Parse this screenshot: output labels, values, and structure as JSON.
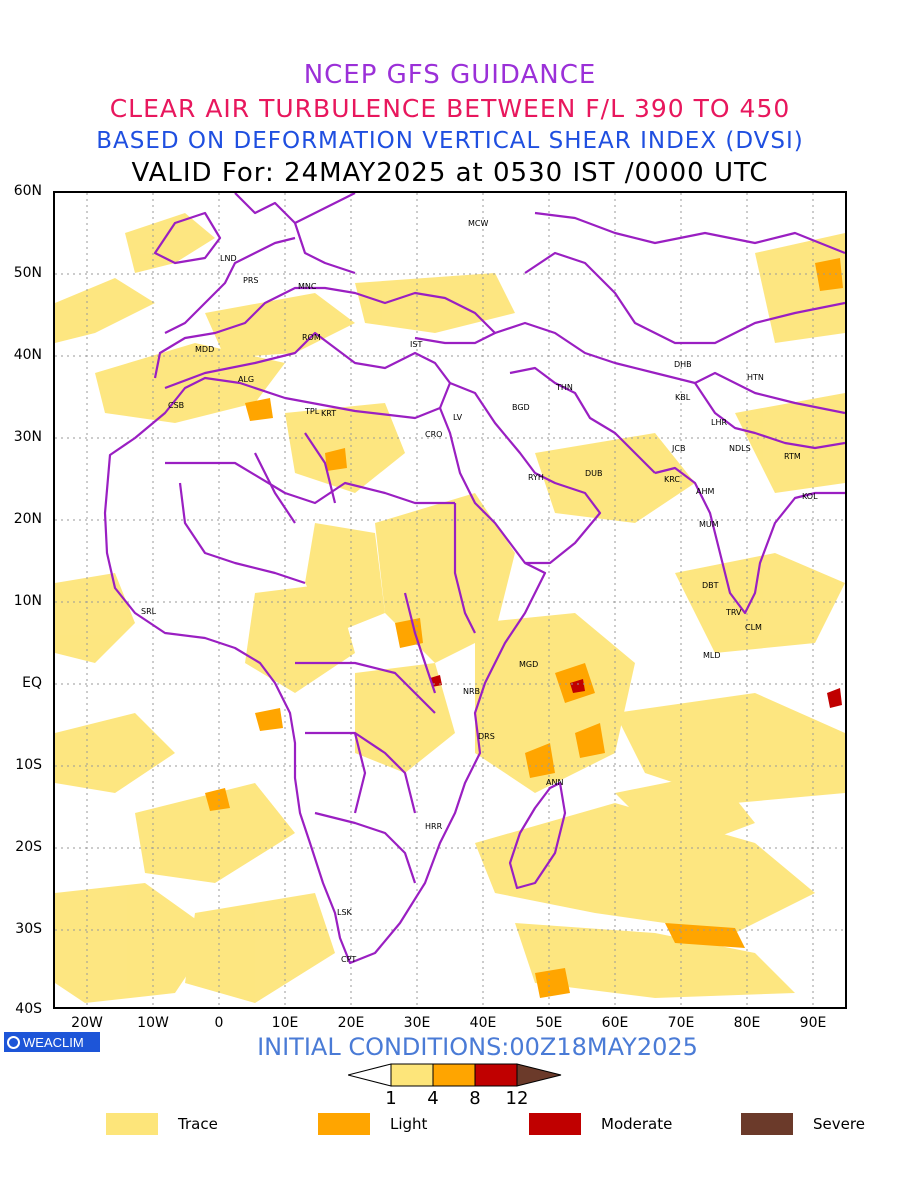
{
  "header": {
    "line1": "NCEP GFS GUIDANCE",
    "line2": "CLEAR AIR TURBULENCE BETWEEN F/L 390 TO 450",
    "line3": "BASED ON DEFORMATION VERTICAL SHEAR INDEX (DVSI)",
    "line4": "VALID For: 24MAY2025 at 0530 IST /0000 UTC"
  },
  "axes": {
    "lat_labels": [
      "60N",
      "50N",
      "40N",
      "30N",
      "20N",
      "10N",
      "EQ",
      "10S",
      "20S",
      "30S",
      "40S"
    ],
    "lon_labels": [
      "20W",
      "10W",
      "0",
      "10E",
      "20E",
      "30E",
      "40E",
      "50E",
      "60E",
      "70E",
      "80E",
      "90E"
    ]
  },
  "stations": [
    "MCW",
    "LND",
    "PRS",
    "MNC",
    "ROM",
    "MDD",
    "IST",
    "ALG",
    "CSB",
    "TPL",
    "KRT",
    "CRO",
    "LV",
    "BGD",
    "THN",
    "DHB",
    "HTN",
    "KBL",
    "LHR",
    "JCB",
    "NDLS",
    "RTM",
    "KRC",
    "AHM",
    "DUB",
    "RYH",
    "KOL",
    "MUM",
    "DBT",
    "TRV",
    "CLM",
    "MLD",
    "SRL",
    "MGD",
    "NRB",
    "DRS",
    "ANN",
    "HRR",
    "LSK",
    "CPT"
  ],
  "footer": {
    "brand": "WEACLIM",
    "initial_conditions": "INITIAL CONDITIONS:00Z18MAY2025"
  },
  "colorbar": {
    "ticks": [
      "1",
      "4",
      "8",
      "12"
    ],
    "colors": [
      "#ffffff",
      "#fde57a",
      "#ffa500",
      "#c00000",
      "#6b3a2a"
    ]
  },
  "legend": [
    {
      "label": "Trace",
      "color": "#fde57a"
    },
    {
      "label": "Light",
      "color": "#ffa500"
    },
    {
      "label": "Moderate",
      "color": "#c00000"
    },
    {
      "label": "Severe",
      "color": "#6b3a2a"
    }
  ]
}
